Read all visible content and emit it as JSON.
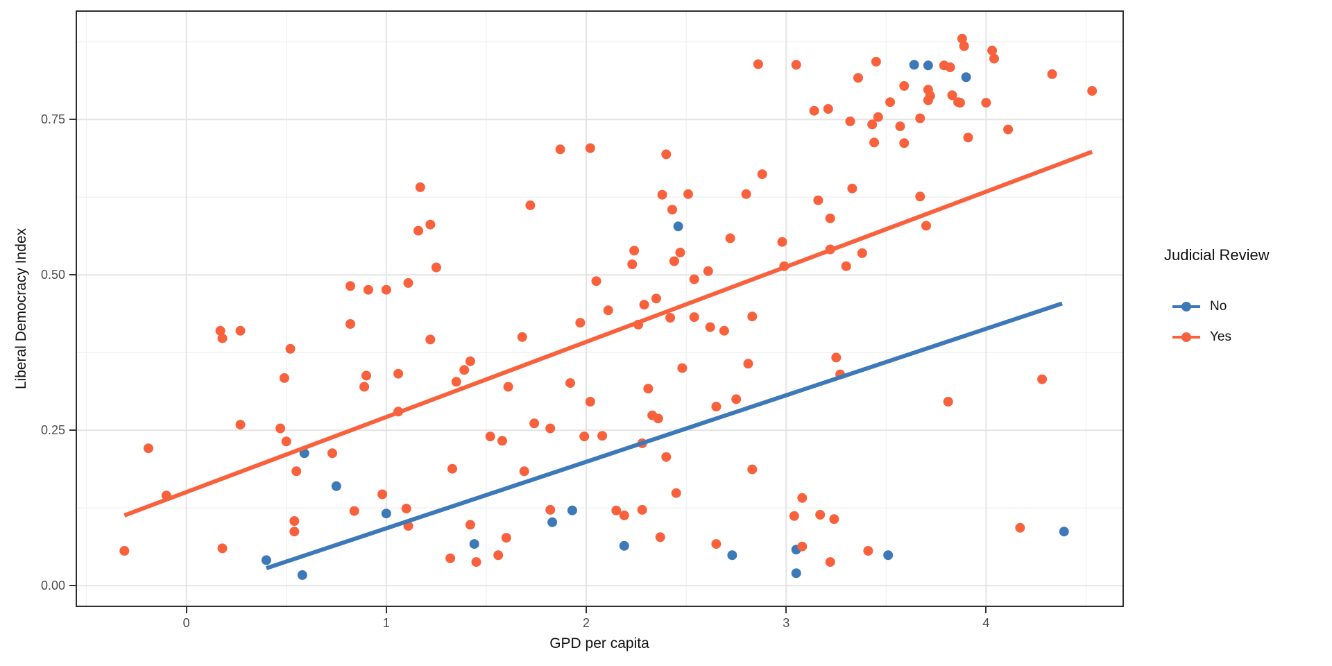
{
  "chart_data": {
    "type": "scatter",
    "title": "",
    "xlabel": "GPD per capita",
    "ylabel": "Liberal Democracy Index",
    "xlim": [
      -0.547,
      4.682
    ],
    "ylim": [
      -0.0322,
      0.9233
    ],
    "grid": "on",
    "x_ticks": [
      {
        "v": 0,
        "label": "0"
      },
      {
        "v": 1,
        "label": "1"
      },
      {
        "v": 2,
        "label": "2"
      },
      {
        "v": 3,
        "label": "3"
      },
      {
        "v": 4,
        "label": "4"
      }
    ],
    "y_ticks": [
      {
        "v": 0.0,
        "label": "0.00"
      },
      {
        "v": 0.25,
        "label": "0.25"
      },
      {
        "v": 0.5,
        "label": "0.50"
      },
      {
        "v": 0.75,
        "label": "0.75"
      }
    ],
    "x_minor": [
      -0.5,
      0.5,
      1.5,
      2.5,
      3.5,
      4.5
    ],
    "y_minor": [
      0.125,
      0.375,
      0.625,
      0.875
    ],
    "style": {
      "grid_major_color": "#e4e4e4",
      "grid_minor_color": "#f2f2f2",
      "panel_border_color": "#2f2f2f",
      "tick_label_color": "#4d4d4d",
      "point_radius": 7,
      "trend_width": 6
    },
    "legend": {
      "title": "Judicial Review",
      "position": "right",
      "entries": [
        {
          "label": "No",
          "color": "#3d79b8"
        },
        {
          "label": "Yes",
          "color": "#f8613c"
        }
      ]
    },
    "series": [
      {
        "name": "No",
        "color": "#3d79b8",
        "trend": [
          [
            0.4,
            0.028
          ],
          [
            4.38,
            0.454
          ]
        ],
        "points": [
          [
            2.46,
            0.578
          ],
          [
            3.64,
            0.838
          ],
          [
            3.71,
            0.837
          ],
          [
            3.9,
            0.818
          ],
          [
            0.59,
            0.213
          ],
          [
            0.75,
            0.16
          ],
          [
            1.0,
            0.116
          ],
          [
            0.4,
            0.041
          ],
          [
            0.58,
            0.017
          ],
          [
            1.93,
            0.121
          ],
          [
            1.83,
            0.102
          ],
          [
            1.44,
            0.067
          ],
          [
            2.19,
            0.064
          ],
          [
            2.73,
            0.049
          ],
          [
            4.39,
            0.087
          ],
          [
            3.05,
            0.058
          ],
          [
            3.51,
            0.049
          ],
          [
            3.05,
            0.02
          ]
        ]
      },
      {
        "name": "Yes",
        "color": "#f8613c",
        "trend": [
          [
            -0.31,
            0.113
          ],
          [
            4.53,
            0.698
          ]
        ],
        "points": [
          [
            1.17,
            0.641
          ],
          [
            1.22,
            0.581
          ],
          [
            1.16,
            0.571
          ],
          [
            0.82,
            0.482
          ],
          [
            0.91,
            0.476
          ],
          [
            1.0,
            0.476
          ],
          [
            1.11,
            0.487
          ],
          [
            2.86,
            0.839
          ],
          [
            1.87,
            0.702
          ],
          [
            2.02,
            0.704
          ],
          [
            2.4,
            0.694
          ],
          [
            2.88,
            0.662
          ],
          [
            2.38,
            0.629
          ],
          [
            2.51,
            0.63
          ],
          [
            2.8,
            0.63
          ],
          [
            1.72,
            0.612
          ],
          [
            2.43,
            0.605
          ],
          [
            2.72,
            0.559
          ],
          [
            2.24,
            0.539
          ],
          [
            2.47,
            0.536
          ],
          [
            2.44,
            0.522
          ],
          [
            2.23,
            0.517
          ],
          [
            1.25,
            0.512
          ],
          [
            2.61,
            0.506
          ],
          [
            2.54,
            0.493
          ],
          [
            2.05,
            0.49
          ],
          [
            2.35,
            0.462
          ],
          [
            2.29,
            0.452
          ],
          [
            2.11,
            0.443
          ],
          [
            3.88,
            0.88
          ],
          [
            3.89,
            0.868
          ],
          [
            4.03,
            0.861
          ],
          [
            4.04,
            0.848
          ],
          [
            3.45,
            0.843
          ],
          [
            3.05,
            0.838
          ],
          [
            3.79,
            0.837
          ],
          [
            3.82,
            0.834
          ],
          [
            4.33,
            0.823
          ],
          [
            3.36,
            0.817
          ],
          [
            4.53,
            0.796
          ],
          [
            3.59,
            0.804
          ],
          [
            3.71,
            0.798
          ],
          [
            3.72,
            0.788
          ],
          [
            3.71,
            0.781
          ],
          [
            3.83,
            0.789
          ],
          [
            3.86,
            0.778
          ],
          [
            3.87,
            0.777
          ],
          [
            3.52,
            0.778
          ],
          [
            4.0,
            0.777
          ],
          [
            3.14,
            0.764
          ],
          [
            3.21,
            0.767
          ],
          [
            3.32,
            0.747
          ],
          [
            3.46,
            0.754
          ],
          [
            3.43,
            0.742
          ],
          [
            3.57,
            0.739
          ],
          [
            3.67,
            0.752
          ],
          [
            4.11,
            0.734
          ],
          [
            3.91,
            0.721
          ],
          [
            3.44,
            0.713
          ],
          [
            3.59,
            0.712
          ],
          [
            3.33,
            0.639
          ],
          [
            3.16,
            0.62
          ],
          [
            3.67,
            0.626
          ],
          [
            3.22,
            0.591
          ],
          [
            3.7,
            0.579
          ],
          [
            2.98,
            0.553
          ],
          [
            3.22,
            0.541
          ],
          [
            3.38,
            0.535
          ],
          [
            2.99,
            0.514
          ],
          [
            3.3,
            0.514
          ],
          [
            0.17,
            0.41
          ],
          [
            0.18,
            0.398
          ],
          [
            0.27,
            0.41
          ],
          [
            0.82,
            0.421
          ],
          [
            0.52,
            0.381
          ],
          [
            0.49,
            0.334
          ],
          [
            0.9,
            0.338
          ],
          [
            0.89,
            0.32
          ],
          [
            1.06,
            0.341
          ],
          [
            1.06,
            0.28
          ],
          [
            0.27,
            0.259
          ],
          [
            0.47,
            0.253
          ],
          [
            0.5,
            0.232
          ],
          [
            0.73,
            0.213
          ],
          [
            -0.19,
            0.221
          ],
          [
            0.55,
            0.184
          ],
          [
            -0.1,
            0.145
          ],
          [
            0.98,
            0.147
          ],
          [
            0.84,
            0.12
          ],
          [
            1.1,
            0.124
          ],
          [
            1.11,
            0.096
          ],
          [
            0.54,
            0.104
          ],
          [
            0.54,
            0.087
          ],
          [
            -0.31,
            0.056
          ],
          [
            0.18,
            0.06
          ],
          [
            1.22,
            0.396
          ],
          [
            1.68,
            0.4
          ],
          [
            1.97,
            0.423
          ],
          [
            2.26,
            0.42
          ],
          [
            2.42,
            0.431
          ],
          [
            2.54,
            0.432
          ],
          [
            2.62,
            0.416
          ],
          [
            2.69,
            0.41
          ],
          [
            2.83,
            0.433
          ],
          [
            1.42,
            0.361
          ],
          [
            1.39,
            0.347
          ],
          [
            1.35,
            0.328
          ],
          [
            1.61,
            0.32
          ],
          [
            2.48,
            0.35
          ],
          [
            2.81,
            0.357
          ],
          [
            1.92,
            0.326
          ],
          [
            2.31,
            0.317
          ],
          [
            2.02,
            0.296
          ],
          [
            2.65,
            0.288
          ],
          [
            2.75,
            0.3
          ],
          [
            2.33,
            0.274
          ],
          [
            2.36,
            0.269
          ],
          [
            1.74,
            0.261
          ],
          [
            1.82,
            0.253
          ],
          [
            1.52,
            0.24
          ],
          [
            1.58,
            0.233
          ],
          [
            1.99,
            0.24
          ],
          [
            2.08,
            0.241
          ],
          [
            2.28,
            0.229
          ],
          [
            2.4,
            0.207
          ],
          [
            1.33,
            0.188
          ],
          [
            1.69,
            0.184
          ],
          [
            2.83,
            0.187
          ],
          [
            2.45,
            0.149
          ],
          [
            1.82,
            0.122
          ],
          [
            2.15,
            0.121
          ],
          [
            2.19,
            0.113
          ],
          [
            2.28,
            0.122
          ],
          [
            1.42,
            0.098
          ],
          [
            1.6,
            0.077
          ],
          [
            1.56,
            0.049
          ],
          [
            1.32,
            0.044
          ],
          [
            1.45,
            0.038
          ],
          [
            2.37,
            0.078
          ],
          [
            2.65,
            0.067
          ],
          [
            3.25,
            0.367
          ],
          [
            3.27,
            0.34
          ],
          [
            4.28,
            0.332
          ],
          [
            3.81,
            0.296
          ],
          [
            3.08,
            0.141
          ],
          [
            3.04,
            0.112
          ],
          [
            3.17,
            0.114
          ],
          [
            3.24,
            0.107
          ],
          [
            4.17,
            0.093
          ],
          [
            3.08,
            0.063
          ],
          [
            3.41,
            0.056
          ],
          [
            3.22,
            0.038
          ]
        ]
      }
    ]
  }
}
